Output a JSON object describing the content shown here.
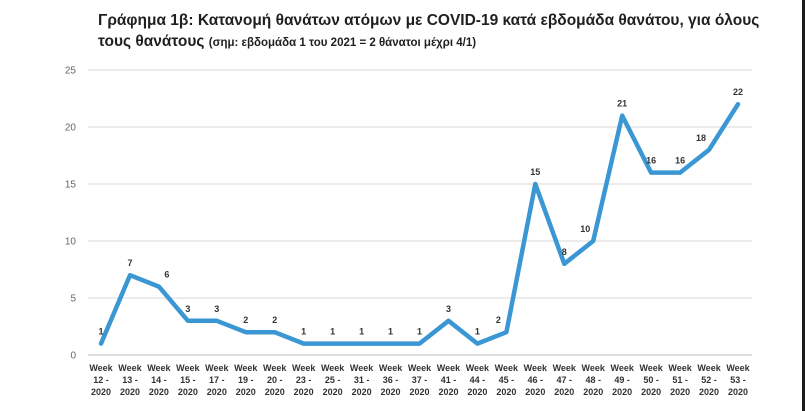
{
  "title": "Γράφημα 1β: Κατανομή θανάτων ατόμων με COVID-19 κατά εβδομάδα θανάτου, για όλους τους θανάτους",
  "title_line1": "Γράφημα 1β: Κατανομή θανάτων ατόμων με COVID-19 κατά εβδομάδα θανάτου, για όλους",
  "title_line2": "τους θανάτους",
  "note": "(σημ: εβδομάδα 1 του 2021 = 2 θάνατοι μέχρι 4/1)",
  "colors": {
    "line": "#3a97d4",
    "grid": "#d9d9d9",
    "text": "#333333"
  },
  "chart_data": {
    "type": "line",
    "title": "Γράφημα 1β: Κατανομή θανάτων ατόμων με COVID-19 κατά εβδομάδα θανάτου, για όλους τους θανάτους",
    "subtitle": "(σημ: εβδομάδα 1 του 2021 = 2 θάνατοι μέχρι 4/1)",
    "xlabel": "",
    "ylabel": "",
    "ylim": [
      0,
      25
    ],
    "yticks": [
      0,
      5,
      10,
      15,
      20,
      25
    ],
    "grid": true,
    "categories": [
      "Week 12 - 2020",
      "Week 13 - 2020",
      "Week 14 - 2020",
      "Week 15 - 2020",
      "Week 17 - 2020",
      "Week 19 - 2020",
      "Week 20 - 2020",
      "Week 23 - 2020",
      "Week 25 - 2020",
      "Week 31 - 2020",
      "Week 36 - 2020",
      "Week 37 - 2020",
      "Week 41 - 2020",
      "Week 44 - 2020",
      "Week 45 - 2020",
      "Week 46 - 2020",
      "Week 47 - 2020",
      "Week 48 - 2020",
      "Week 49 - 2020",
      "Week 50 - 2020",
      "Week 51 - 2020",
      "Week 52 - 2020",
      "Week 53 - 2020"
    ],
    "series": [
      {
        "values": [
          1,
          7,
          6,
          3,
          3,
          2,
          2,
          1,
          1,
          1,
          1,
          1,
          3,
          1,
          2,
          15,
          8,
          10,
          21,
          16,
          16,
          18,
          22
        ]
      }
    ]
  }
}
